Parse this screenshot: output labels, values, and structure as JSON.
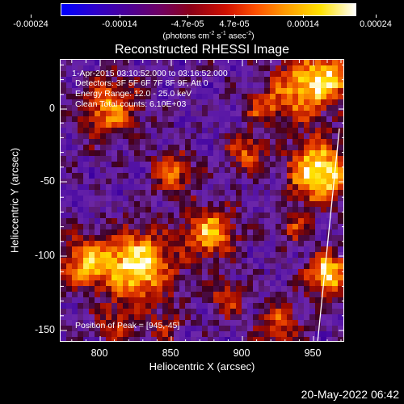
{
  "colorbar": {
    "labels": [
      "-0.00024",
      "-0.00014",
      "-4.7e-05",
      "4.7e-05",
      "0.00014",
      "0.00024"
    ],
    "units_main": "(photons cm",
    "units_sup1": "-2",
    "units_mid": " s",
    "units_sup2": "-1",
    "units_end": " asec",
    "units_sup3": "-2",
    "units_close": ")"
  },
  "plot": {
    "title": "Reconstructed RHESSI Image",
    "info_lines": [
      "1-Apr-2015 03:10:52.000 to 03:16:52.000",
      "Detectors: 3F 5F 6F 7F 8F 9F, Att 0",
      "Energy Range: 12.0 - 25.0 keV",
      "Clean     Total counts: 6.10E+03"
    ],
    "peak_text": "Position of Peak = [945,-45]",
    "x_label": "Heliocentric X (arcsec)",
    "y_label": "Heliocentric Y (arcsec)",
    "x_ticks": [
      "800",
      "850",
      "900",
      "950"
    ],
    "y_ticks": [
      "0",
      "-50",
      "-100",
      "-150"
    ],
    "x_range": [
      775,
      965
    ],
    "y_range": [
      -160,
      25
    ]
  },
  "footer": {
    "timestamp": "20-May-2022 06:42"
  },
  "colors": {
    "background": "#000000",
    "hot": "#ffe000",
    "cold": "#3000c0"
  }
}
